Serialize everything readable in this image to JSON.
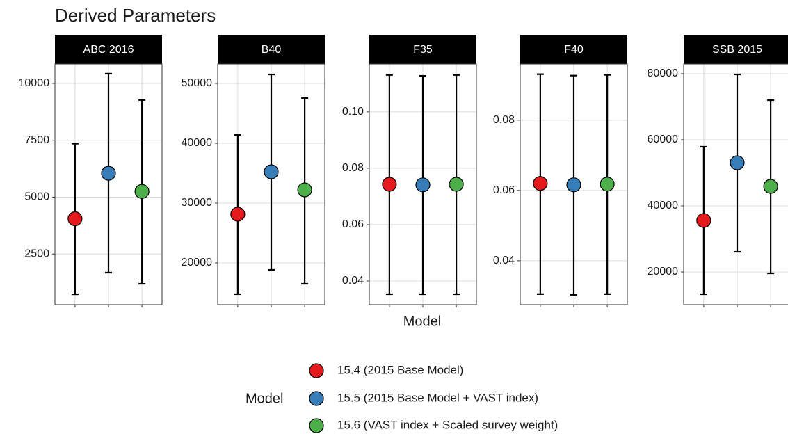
{
  "title": "Derived Parameters",
  "x_label": "Model",
  "legend_title": "Model",
  "chart_data": [
    {
      "type": "pointrange",
      "facet": "ABC 2016",
      "categories": [
        null,
        null,
        null
      ],
      "ylim": [
        274,
        10854
      ],
      "yticks": [
        2500,
        5000,
        7500,
        10000
      ],
      "series": [
        {
          "name": "15.4 (2015 Base Model)",
          "color": "#e41a1c",
          "values": [
            4050,
            null,
            null
          ],
          "lower": [
            730,
            null,
            null
          ],
          "upper": [
            7350,
            null,
            null
          ]
        },
        {
          "name": "15.5 (2015 Base Model + VAST index)",
          "color": "#377eb8",
          "values": [
            null,
            6050,
            null
          ],
          "lower": [
            null,
            1680,
            null
          ],
          "upper": [
            null,
            10430,
            null
          ]
        },
        {
          "name": "15.6 (VAST index + Scaled survey weight)",
          "color": "#4daf4a",
          "values": [
            null,
            null,
            5250
          ],
          "lower": [
            null,
            null,
            1190
          ],
          "upper": [
            null,
            null,
            9270
          ]
        }
      ]
    },
    {
      "type": "pointrange",
      "facet": "B40",
      "categories": [
        null,
        null,
        null
      ],
      "ylim": [
        13023,
        53256
      ],
      "yticks": [
        20000,
        30000,
        40000,
        50000
      ],
      "series": [
        {
          "name": "15.4 (2015 Base Model)",
          "color": "#e41a1c",
          "values": [
            28140,
            null,
            null
          ],
          "lower": [
            14770,
            null,
            null
          ],
          "upper": [
            41400,
            null,
            null
          ]
        },
        {
          "name": "15.5 (2015 Base Model + VAST index)",
          "color": "#377eb8",
          "values": [
            null,
            35230,
            null
          ],
          "lower": [
            null,
            18840,
            null
          ],
          "upper": [
            null,
            51510,
            null
          ]
        },
        {
          "name": "15.6 (VAST index + Scaled survey weight)",
          "color": "#4daf4a",
          "values": [
            null,
            null,
            32210
          ],
          "lower": [
            null,
            null,
            16510
          ],
          "upper": [
            null,
            null,
            47560
          ]
        }
      ]
    },
    {
      "type": "pointrange",
      "facet": "F35",
      "categories": [
        null,
        null,
        null
      ],
      "ylim": [
        0.0316,
        0.117
      ],
      "yticks": [
        {
          "value": 0.04,
          "label": "0.04"
        },
        {
          "value": 0.06,
          "label": "0.06"
        },
        {
          "value": 0.08,
          "label": "0.08"
        },
        {
          "value": 0.1,
          "label": "0.10"
        }
      ],
      "series": [
        {
          "name": "15.4 (2015 Base Model)",
          "color": "#e41a1c",
          "values": [
            0.0743,
            null,
            null
          ],
          "lower": [
            0.0353,
            null,
            null
          ],
          "upper": [
            0.1131,
            null,
            null
          ]
        },
        {
          "name": "15.5 (2015 Base Model + VAST index)",
          "color": "#377eb8",
          "values": [
            null,
            0.0741,
            null
          ],
          "lower": [
            null,
            0.0353,
            null
          ],
          "upper": [
            null,
            0.1128,
            null
          ]
        },
        {
          "name": "15.6 (VAST index + Scaled survey weight)",
          "color": "#4daf4a",
          "values": [
            null,
            null,
            0.0743
          ],
          "lower": [
            null,
            null,
            0.0353
          ],
          "upper": [
            null,
            null,
            0.1131
          ]
        }
      ]
    },
    {
      "type": "pointrange",
      "facet": "F40",
      "categories": [
        null,
        null,
        null
      ],
      "ylim": [
        0.0275,
        0.096
      ],
      "yticks": [
        0.04,
        0.06,
        0.08
      ],
      "series": [
        {
          "name": "15.4 (2015 Base Model)",
          "color": "#e41a1c",
          "values": [
            0.062,
            null,
            null
          ],
          "lower": [
            0.0305,
            null,
            null
          ],
          "upper": [
            0.0931,
            null,
            null
          ]
        },
        {
          "name": "15.5 (2015 Base Model + VAST index)",
          "color": "#377eb8",
          "values": [
            null,
            0.0616,
            null
          ],
          "lower": [
            null,
            0.0303,
            null
          ],
          "upper": [
            null,
            0.0927,
            null
          ]
        },
        {
          "name": "15.6 (VAST index + Scaled survey weight)",
          "color": "#4daf4a",
          "values": [
            null,
            null,
            0.0618
          ],
          "lower": [
            null,
            null,
            0.0305
          ],
          "upper": [
            null,
            null,
            0.0929
          ]
        }
      ]
    },
    {
      "type": "pointrange",
      "facet": "SSB 2015",
      "categories": [
        null,
        null,
        null
      ],
      "ylim": [
        10105,
        82947
      ],
      "yticks": [
        20000,
        40000,
        60000,
        80000
      ],
      "series": [
        {
          "name": "15.4 (2015 Base Model)",
          "color": "#e41a1c",
          "values": [
            35580,
            null,
            null
          ],
          "lower": [
            13260,
            null,
            null
          ],
          "upper": [
            57900,
            null,
            null
          ]
        },
        {
          "name": "15.5 (2015 Base Model + VAST index)",
          "color": "#377eb8",
          "values": [
            null,
            53050,
            null
          ],
          "lower": [
            null,
            26100,
            null
          ],
          "upper": [
            null,
            79790,
            null
          ]
        },
        {
          "name": "15.6 (VAST index + Scaled survey weight)",
          "color": "#4daf4a",
          "values": [
            null,
            null,
            45900
          ],
          "lower": [
            null,
            null,
            19580
          ],
          "upper": [
            null,
            null,
            72000
          ]
        }
      ]
    }
  ]
}
